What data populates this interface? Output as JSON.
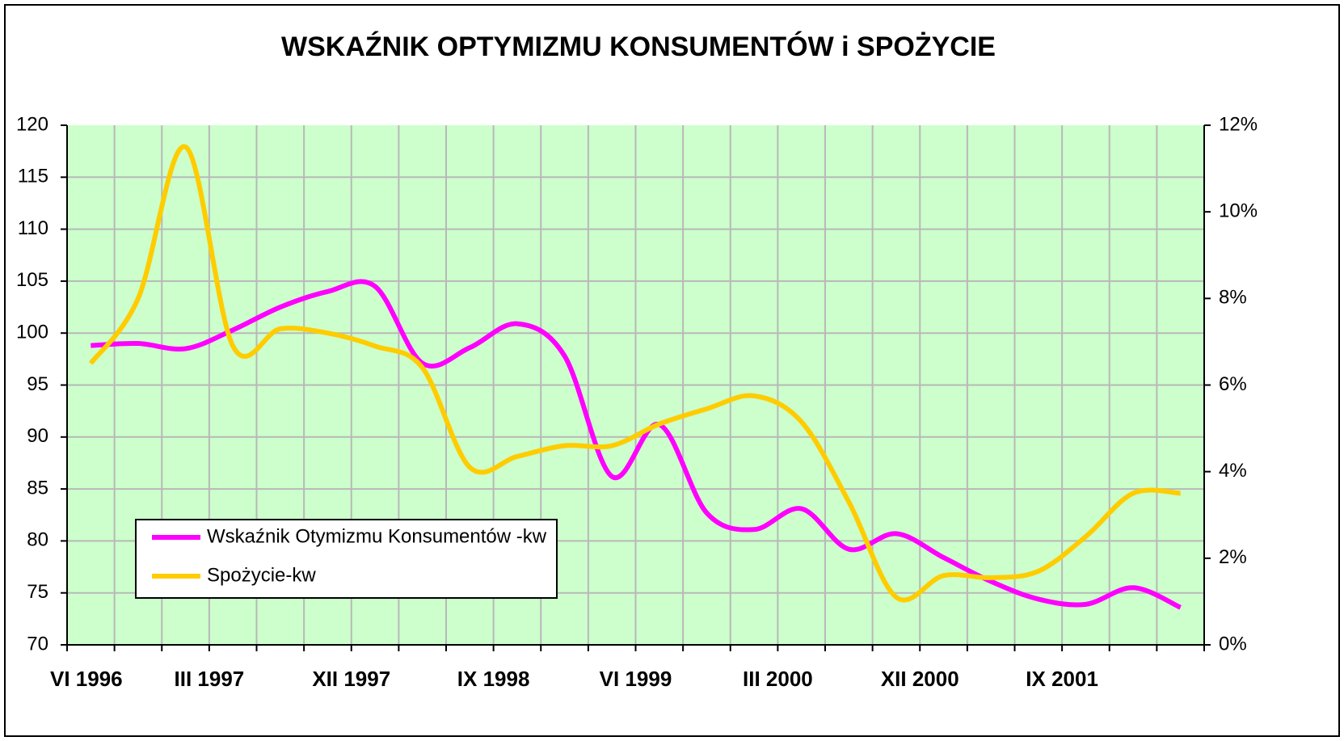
{
  "chart_data": {
    "type": "line",
    "title": "WSKAŹNIK OPTYMIZMU KONSUMENTÓW i SPOŻYCIE",
    "categories": [
      "VI 1996",
      null,
      null,
      "III 1997",
      null,
      null,
      "XII 1997",
      null,
      null,
      "IX 1998",
      null,
      null,
      "VI 1999",
      null,
      null,
      "III 2000",
      null,
      null,
      "XII 2000",
      null,
      null,
      "IX 2001",
      null,
      null
    ],
    "series": [
      {
        "name": "Wskaźnik Otymizmu Konsumentów -kw",
        "color": "#ff00ff",
        "axis": "y",
        "values": [
          98.8,
          99.0,
          98.5,
          100.3,
          102.5,
          104.0,
          104.5,
          97.1,
          98.6,
          100.9,
          97.8,
          86.2,
          91.2,
          82.7,
          81.1,
          83.1,
          79.2,
          80.7,
          78.4,
          76.1,
          74.4,
          73.9,
          75.5,
          73.6
        ]
      },
      {
        "name": "Spożycie-kw",
        "color": "#ffcc00",
        "axis": "y2",
        "values": [
          6.5,
          8.0,
          11.5,
          6.9,
          7.3,
          7.2,
          6.9,
          6.4,
          4.1,
          4.35,
          4.6,
          4.6,
          5.1,
          5.45,
          5.75,
          5.15,
          3.3,
          1.1,
          1.6,
          1.55,
          1.7,
          2.5,
          3.5,
          3.5
        ]
      }
    ],
    "ylim": [
      70,
      120
    ],
    "yticks": [
      70,
      75,
      80,
      85,
      90,
      95,
      100,
      105,
      110,
      115,
      120
    ],
    "y2lim": [
      0,
      12
    ],
    "y2ticks": [
      {
        "value": 0,
        "label": "0%"
      },
      {
        "value": 2,
        "label": "2%"
      },
      {
        "value": 4,
        "label": "4%"
      },
      {
        "value": 6,
        "label": "6%"
      },
      {
        "value": 8,
        "label": "8%"
      },
      {
        "value": 10,
        "label": "10%"
      },
      {
        "value": 12,
        "label": "12%"
      }
    ],
    "grid": true,
    "legend": "lower-left",
    "background": "#ccffcc"
  }
}
